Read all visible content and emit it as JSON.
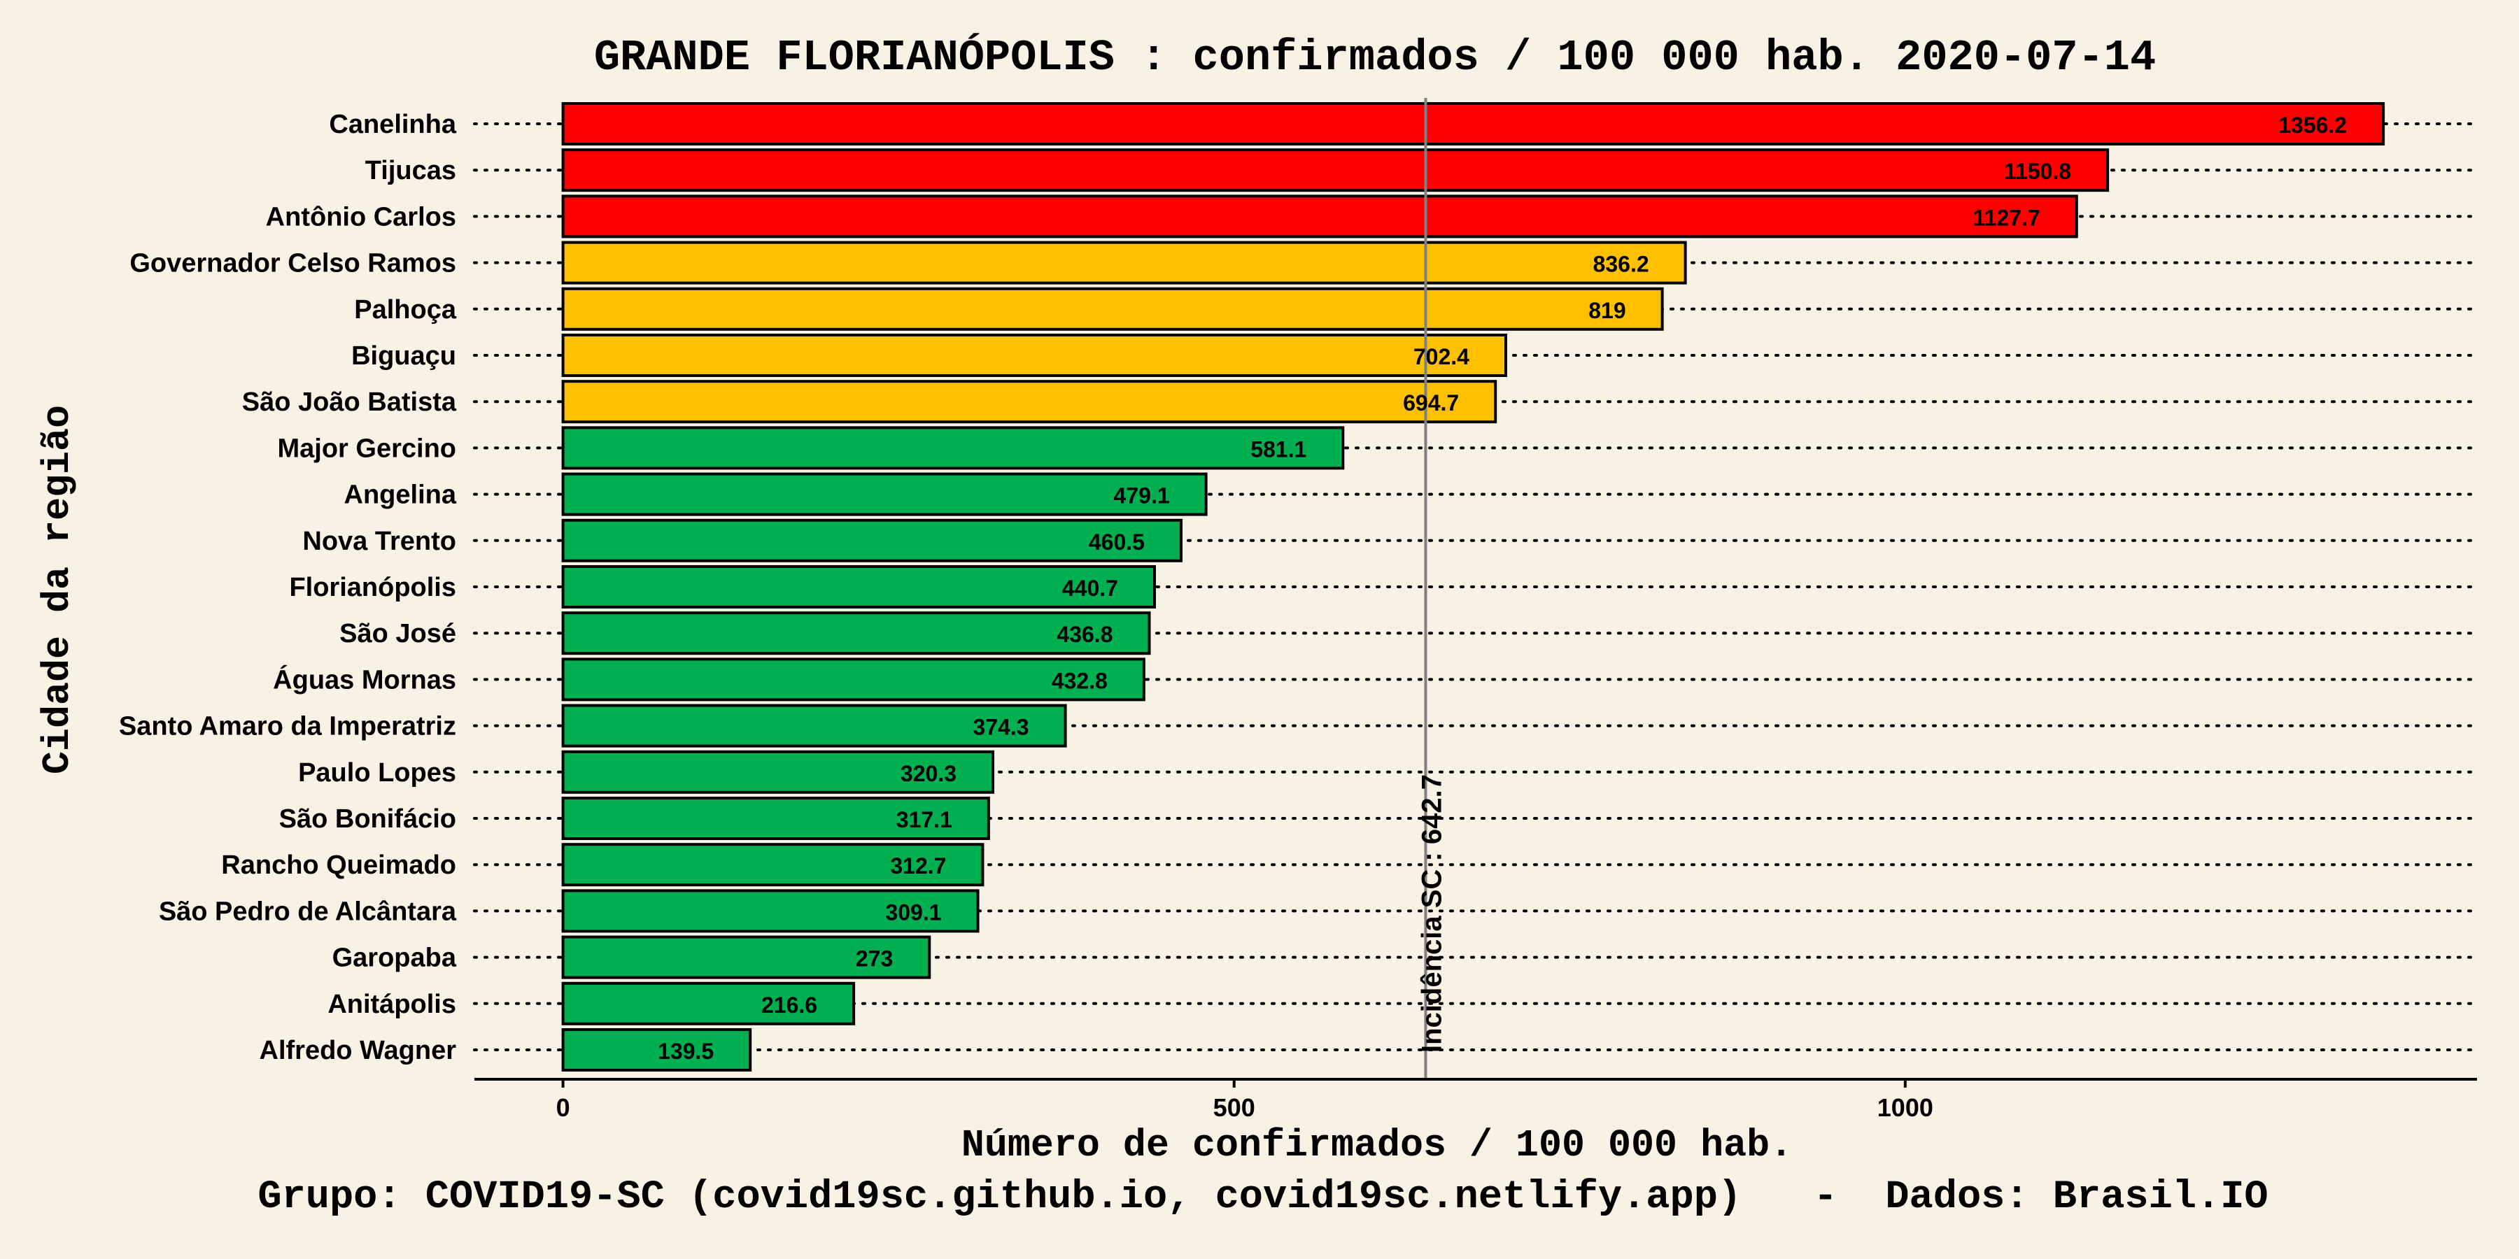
{
  "colors": {
    "background": "#f8f2e4",
    "high": "#ff0000",
    "medium": "#ffc000",
    "low": "#00b050",
    "reference_line": "#808080",
    "text": "#000000"
  },
  "caption": "Grupo: COVID19-SC (covid19sc.github.io, covid19sc.netlify.app)   -  Dados: Brasil.IO",
  "chart_data": {
    "type": "bar",
    "orientation": "horizontal",
    "title": "GRANDE FLORIANÓPOLIS : confirmados / 100 000 hab. 2020-07-14",
    "xlabel": "Número de confirmados / 100 000 hab.",
    "ylabel": "Cidade da região",
    "xlim": [
      -66,
      1426
    ],
    "xticks": [
      0,
      500,
      1000
    ],
    "grid": "dotted horizontal guides per category",
    "legend": "none",
    "categories": [
      "Canelinha",
      "Tijucas",
      "Antônio Carlos",
      "Governador Celso Ramos",
      "Palhoça",
      "Biguaçu",
      "São João Batista",
      "Major Gercino",
      "Angelina",
      "Nova Trento",
      "Florianópolis",
      "São José",
      "Águas Mornas",
      "Santo Amaro da Imperatriz",
      "Paulo Lopes",
      "São Bonifácio",
      "Rancho Queimado",
      "São Pedro de Alcântara",
      "Garopaba",
      "Anitápolis",
      "Alfredo Wagner"
    ],
    "values": [
      1356.2,
      1150.8,
      1127.7,
      836.2,
      819,
      702.4,
      694.7,
      581.1,
      479.1,
      460.5,
      440.7,
      436.8,
      432.8,
      374.3,
      320.3,
      317.1,
      312.7,
      309.1,
      273,
      216.6,
      139.5
    ],
    "value_labels": [
      "1356.2",
      "1150.8",
      "1127.7",
      "836.2",
      "819",
      "702.4",
      "694.7",
      "581.1",
      "479.1",
      "460.5",
      "440.7",
      "436.8",
      "432.8",
      "374.3",
      "320.3",
      "317.1",
      "312.7",
      "309.1",
      "273",
      "216.6",
      "139.5"
    ],
    "bar_colors": [
      "high",
      "high",
      "high",
      "medium",
      "medium",
      "medium",
      "medium",
      "low",
      "low",
      "low",
      "low",
      "low",
      "low",
      "low",
      "low",
      "low",
      "low",
      "low",
      "low",
      "low",
      "low"
    ],
    "reference_line": {
      "value": 642.7,
      "label": "Incidência SC : 642.7"
    }
  }
}
